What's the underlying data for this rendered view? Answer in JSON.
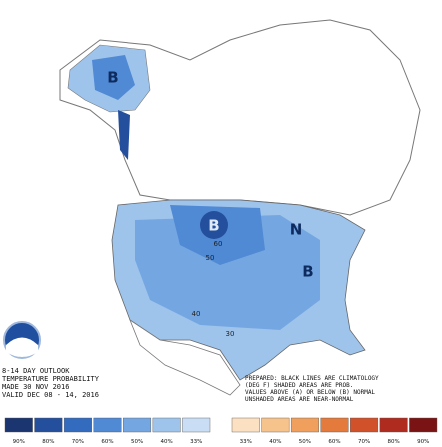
{
  "outlook": {
    "lines": [
      "8-14 DAY OUTLOOK",
      "TEMPERATURE PROBABILITY",
      "MADE 30 NOV 2016",
      "VALID DEC 08 - 14, 2016"
    ]
  },
  "notes": {
    "lines": [
      "PREPARED: BLACK LINES ARE CLIMATOLOGY",
      "(DEG F) SHADED AREAS ARE PROB.",
      "VALUES ABOVE (A) OR BELOW (B) NORMAL",
      "UNSHADED AREAS ARE NEAR-NORMAL"
    ]
  },
  "map_labels": [
    "B",
    "B",
    "B",
    "N"
  ],
  "contour_labels": [
    "60",
    "50",
    "40",
    "30"
  ],
  "legend": {
    "items": [
      {
        "label": "90%",
        "color": "#1b3570"
      },
      {
        "label": "80%",
        "color": "#244f9c"
      },
      {
        "label": "70%",
        "color": "#336cbf"
      },
      {
        "label": "60%",
        "color": "#5089d4"
      },
      {
        "label": "50%",
        "color": "#74a7e2"
      },
      {
        "label": "40%",
        "color": "#9fc4ec"
      },
      {
        "label": "33%",
        "color": "#c9def5"
      },
      {
        "label": "33%",
        "color": "#fbe1c2"
      },
      {
        "label": "40%",
        "color": "#f7c38c"
      },
      {
        "label": "50%",
        "color": "#f0a05c"
      },
      {
        "label": "60%",
        "color": "#e47a3b"
      },
      {
        "label": "70%",
        "color": "#d1512b"
      },
      {
        "label": "80%",
        "color": "#b02b1f"
      },
      {
        "label": "90%",
        "color": "#7a1414"
      }
    ]
  }
}
